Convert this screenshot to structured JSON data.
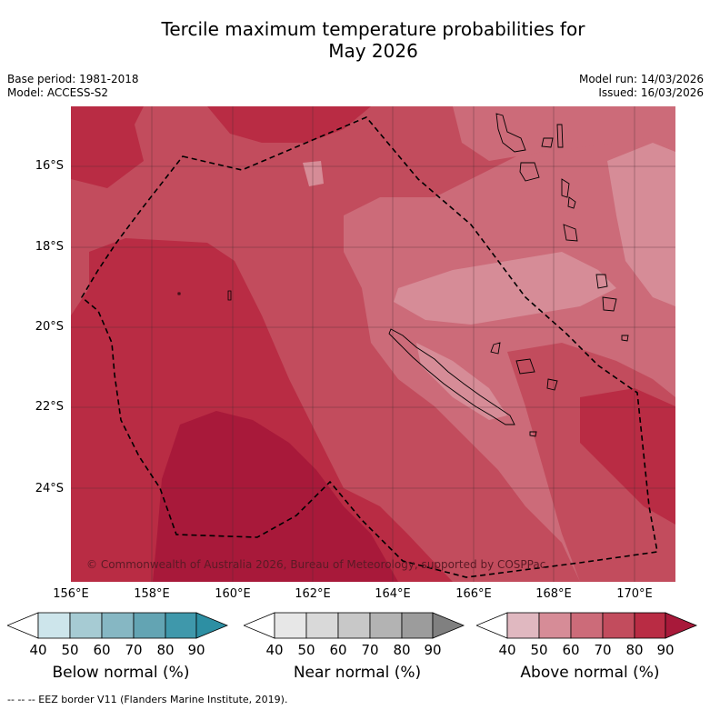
{
  "title_line1": "Tercile maximum temperature probabilities for",
  "title_line2": "May 2026",
  "base_period": "Base period: 1981-2018",
  "model": "Model: ACCESS-S2",
  "model_run": "Model run: 14/03/2026",
  "issued": "Issued: 16/03/2026",
  "lat_labels": [
    "16°S",
    "18°S",
    "20°S",
    "22°S",
    "24°S"
  ],
  "lon_labels": [
    "156°E",
    "158°E",
    "160°E",
    "162°E",
    "164°E",
    "166°E",
    "168°E",
    "170°E"
  ],
  "copyright": "© Commonwealth of Australia 2026, Bureau of Meteorology, supported by COSPPac",
  "legends": [
    {
      "title": "Below normal (%)",
      "ticks": [
        "40",
        "50",
        "60",
        "70",
        "80",
        "90"
      ],
      "colors": [
        "#ffffff",
        "#cde5eb",
        "#a6cbd3",
        "#86b7c3",
        "#63a4b3",
        "#3f98ab",
        "#2d8fa3"
      ]
    },
    {
      "title": "Near normal (%)",
      "ticks": [
        "40",
        "50",
        "60",
        "70",
        "80",
        "90"
      ],
      "colors": [
        "#ffffff",
        "#e7e7e7",
        "#d9d9d9",
        "#c8c8c8",
        "#b3b3b3",
        "#9c9c9c",
        "#808080"
      ]
    },
    {
      "title": "Above normal (%)",
      "ticks": [
        "40",
        "50",
        "60",
        "70",
        "80",
        "90"
      ],
      "colors": [
        "#ffffff",
        "#e0b8c0",
        "#d68c97",
        "#cc6b79",
        "#c24c5d",
        "#b92c44",
        "#a8193a"
      ]
    }
  ],
  "footer": "-- -- -- EEZ border V11 (Flanders Marine Institute, 2019)."
}
